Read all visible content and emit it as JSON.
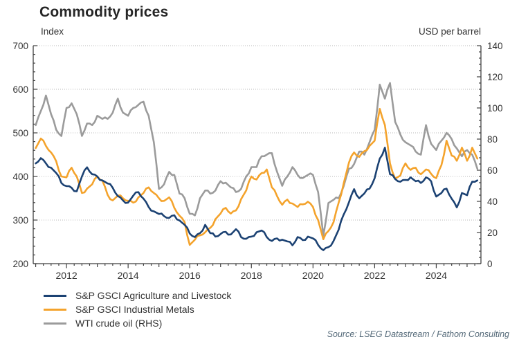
{
  "chart_data": {
    "type": "line",
    "title": "Commodity prices",
    "ylabel_left": "Index",
    "ylabel_right": "USD per barrel",
    "source": "Source: LSEG Datastream / Fathom Consulting",
    "grid": "horizontal-dotted",
    "legend_position": "bottom-left",
    "x_axis": {
      "min": 2010.92,
      "max": 2025.45,
      "labeled_years": [
        2012,
        2014,
        2016,
        2018,
        2020,
        2022,
        2024
      ],
      "minor_tick_step_years": 0.25
    },
    "y_left": {
      "min": 200,
      "max": 700,
      "major_step": 100,
      "minor_step": 20,
      "ticks": [
        200,
        300,
        400,
        500,
        600,
        700
      ]
    },
    "y_right": {
      "min": 0,
      "max": 140,
      "major_step": 20,
      "minor_step": 4,
      "ticks": [
        0,
        20,
        40,
        60,
        80,
        100,
        120,
        140
      ]
    },
    "x_start": 2011.0,
    "x_step_years": 0.166667,
    "series": [
      {
        "name": "S&P GSCI Agriculture and Livestock",
        "axis": "left",
        "color": "#1C4273",
        "values": [
          430,
          442,
          430,
          420,
          408,
          385,
          378,
          374,
          366,
          400,
          421,
          405,
          400,
          391,
          384,
          374,
          355,
          345,
          340,
          356,
          364,
          349,
          330,
          320,
          314,
          309,
          305,
          311,
          299,
          289,
          269,
          261,
          270,
          289,
          270,
          262,
          268,
          273,
          267,
          279,
          261,
          257,
          262,
          272,
          276,
          261,
          252,
          258,
          255,
          251,
          242,
          261,
          254,
          262,
          258,
          243,
          231,
          238,
          252,
          278,
          313,
          341,
          371,
          350,
          361,
          372,
          396,
          441,
          466,
          405,
          394,
          388,
          392,
          398,
          389,
          385,
          398,
          389,
          354,
          362,
          372,
          349,
          329,
          362,
          357,
          388,
          391
        ]
      },
      {
        "name": "S&P GSCI Industrial Metals",
        "axis": "left",
        "color": "#F4A32C",
        "values": [
          465,
          487,
          470,
          455,
          435,
          400,
          398,
          420,
          400,
          362,
          372,
          382,
          400,
          390,
          358,
          345,
          356,
          350,
          344,
          340,
          352,
          362,
          375,
          362,
          350,
          344,
          352,
          328,
          310,
          295,
          243,
          255,
          265,
          272,
          282,
          302,
          315,
          328,
          315,
          322,
          348,
          368,
          400,
          393,
          408,
          416,
          375,
          355,
          335,
          347,
          338,
          330,
          336,
          342,
          330,
          300,
          256,
          275,
          295,
          340,
          385,
          432,
          455,
          445,
          458,
          470,
          482,
          555,
          518,
          430,
          395,
          402,
          430,
          415,
          420,
          405,
          416,
          406,
          396,
          426,
          482,
          448,
          436,
          466,
          436,
          466,
          441
        ]
      },
      {
        "name": "WTI crude oil (RHS)",
        "axis": "right",
        "color": "#9B9B9B",
        "values": [
          89,
          98,
          108,
          96,
          86,
          82,
          100,
          103,
          96,
          82,
          90,
          89,
          95,
          93,
          93,
          97,
          106,
          97,
          95,
          100,
          102,
          104,
          95,
          78,
          48,
          51,
          59,
          57,
          45,
          42,
          32,
          31,
          42,
          47,
          45,
          47,
          53,
          52,
          49,
          46,
          48,
          56,
          62,
          62,
          69,
          70,
          71,
          59,
          50,
          56,
          62,
          57,
          55,
          57,
          57,
          46,
          18,
          39,
          41,
          42,
          50,
          61,
          64,
          72,
          70,
          78,
          86,
          115,
          106,
          116,
          91,
          83,
          78,
          76,
          72,
          70,
          89,
          77,
          73,
          79,
          84,
          80,
          74,
          69,
          73,
          70,
          61
        ]
      }
    ],
    "style": {
      "axis_color": "#3F3F3F",
      "grid_color": "#B9B9B9",
      "tick_label_color": "#333333",
      "line_width": 2.6
    }
  }
}
